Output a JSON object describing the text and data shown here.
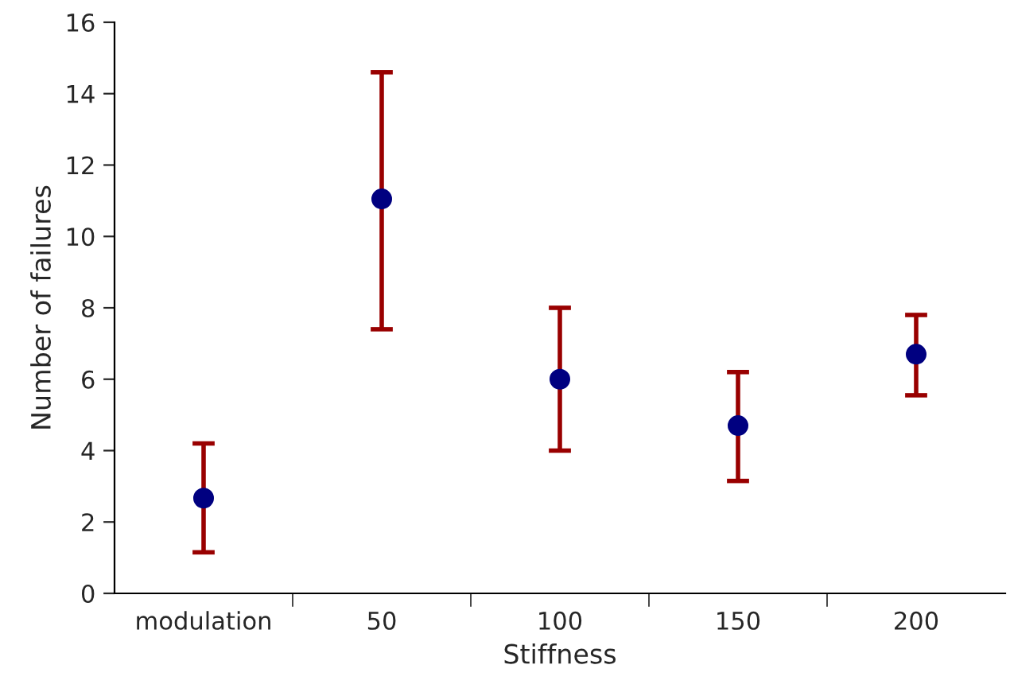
{
  "chart_data": {
    "type": "scatter",
    "xlabel": "Stiffness",
    "ylabel": "Number of failures",
    "categories": [
      "modulation",
      "50",
      "100",
      "150",
      "200"
    ],
    "series": [
      {
        "color": "#000080",
        "values": [
          2.67,
          11.05,
          6.0,
          4.7,
          6.7
        ],
        "errors": [
          [
            1.15,
            4.2
          ],
          [
            7.4,
            14.6
          ],
          [
            4.0,
            8.0
          ],
          [
            3.15,
            6.2
          ],
          [
            5.55,
            7.8
          ]
        ]
      }
    ],
    "ylim": [
      0,
      16
    ],
    "yticks": [
      0,
      2,
      4,
      6,
      8,
      10,
      12,
      14,
      16
    ],
    "grid": false,
    "legend": false,
    "marker": "circle"
  }
}
